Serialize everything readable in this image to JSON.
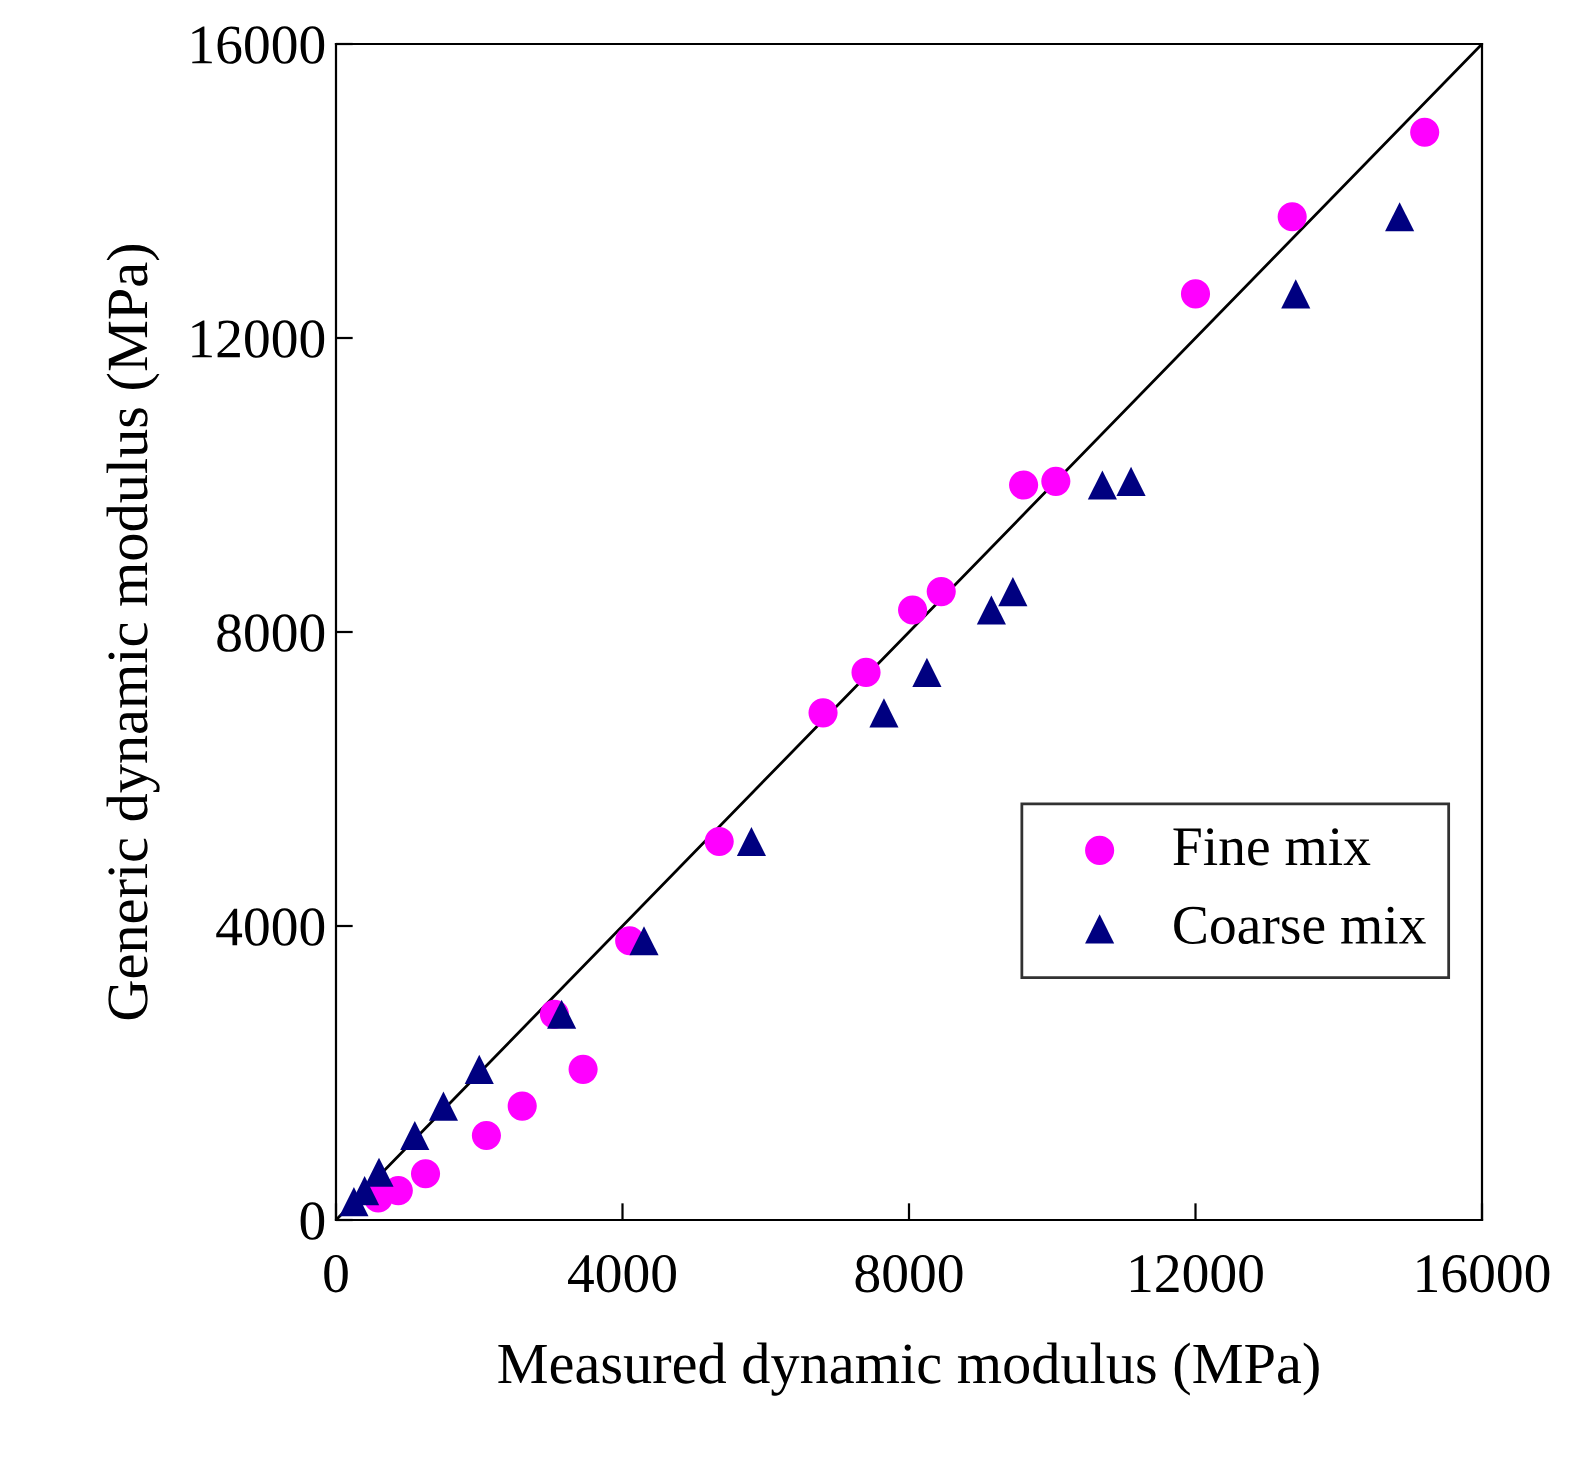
{
  "chart_data": {
    "type": "scatter",
    "xlabel": "Measured dynamic modulus (MPa)",
    "ylabel": "Generic dynamic modulus (MPa)",
    "xlim": [
      0,
      16000
    ],
    "ylim": [
      0,
      16000
    ],
    "xticks": [
      0,
      4000,
      8000,
      12000,
      16000
    ],
    "yticks": [
      0,
      4000,
      8000,
      12000,
      16000
    ],
    "grid": false,
    "legend": "right",
    "series": [
      {
        "name": "Fine mix",
        "marker": "circle",
        "color": "#ff00ff",
        "x": [
          590,
          870,
          1250,
          2100,
          2600,
          3450,
          3050,
          4100,
          5350,
          6800,
          7400,
          8050,
          8450,
          9600,
          10050,
          12000,
          13350,
          15200
        ],
        "values": [
          300,
          400,
          630,
          1150,
          1550,
          2050,
          2800,
          3800,
          5150,
          6900,
          7450,
          8300,
          8550,
          10000,
          10050,
          12600,
          13650,
          14800
        ]
      },
      {
        "name": "Coarse mix",
        "marker": "triangle",
        "color": "#000080",
        "x": [
          250,
          400,
          600,
          1100,
          1500,
          2000,
          3150,
          4300,
          5800,
          7650,
          8250,
          9150,
          9450,
          10700,
          11100,
          13400,
          14850
        ],
        "values": [
          250,
          400,
          650,
          1150,
          1550,
          2050,
          2800,
          3800,
          5150,
          6900,
          7450,
          8300,
          8550,
          10000,
          10050,
          12600,
          13650
        ]
      },
      {
        "type": "line",
        "color": "#000000",
        "line_style": "solid",
        "x": [
          0,
          16000
        ],
        "values": [
          0,
          16000
        ]
      }
    ]
  }
}
